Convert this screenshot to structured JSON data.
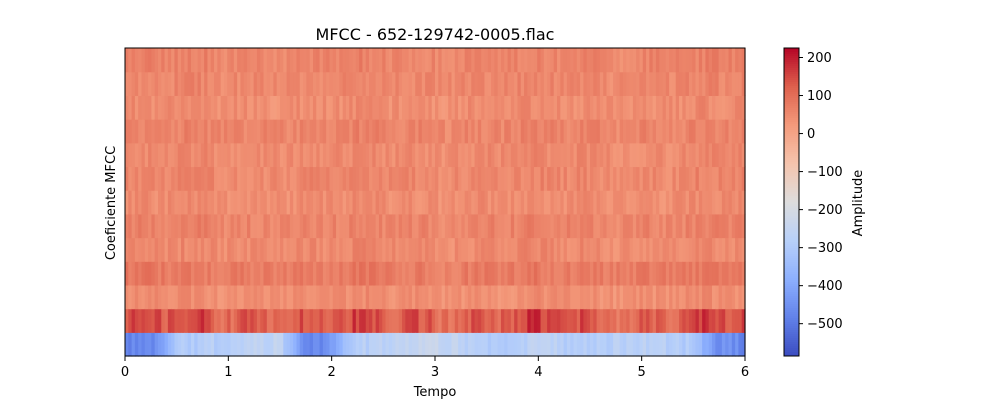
{
  "chart_data": {
    "type": "heatmap",
    "title": "MFCC - 652-129742-0005.flac",
    "xlabel": "Tempo",
    "ylabel": "Coeficiente MFCC",
    "xlim": [
      0,
      6
    ],
    "x_ticks": [
      0,
      1,
      2,
      3,
      4,
      5,
      6
    ],
    "n_coefficients": 13,
    "colormap": "coolwarm",
    "colorbar": {
      "label": "Amplitude",
      "range": [
        -585,
        225
      ],
      "ticks": [
        {
          "value": 200,
          "label": "200"
        },
        {
          "value": 100,
          "label": "100"
        },
        {
          "value": 0,
          "label": "0"
        },
        {
          "value": -100,
          "label": "−100"
        },
        {
          "value": -200,
          "label": "−200"
        },
        {
          "value": -300,
          "label": "−300"
        },
        {
          "value": -400,
          "label": "−400"
        },
        {
          "value": -500,
          "label": "−500"
        }
      ]
    },
    "grid": false,
    "coefficient_profile": {
      "coefficient": [
        0,
        1,
        2,
        3,
        4,
        5,
        6,
        7,
        8,
        9,
        10,
        11,
        12
      ],
      "typical_amplitude": [
        -270,
        130,
        40,
        75,
        50,
        60,
        45,
        55,
        50,
        60,
        45,
        55,
        60
      ]
    },
    "coefficient_0_over_time": {
      "time": [
        0,
        0.3,
        0.5,
        1.0,
        1.5,
        1.75,
        1.9,
        2.2,
        3.0,
        3.5,
        4.0,
        4.5,
        5.0,
        5.5,
        5.7,
        6.0
      ],
      "amplitude": [
        -480,
        -460,
        -300,
        -280,
        -260,
        -480,
        -470,
        -290,
        -230,
        -300,
        -270,
        -290,
        -270,
        -300,
        -440,
        -470
      ]
    }
  }
}
